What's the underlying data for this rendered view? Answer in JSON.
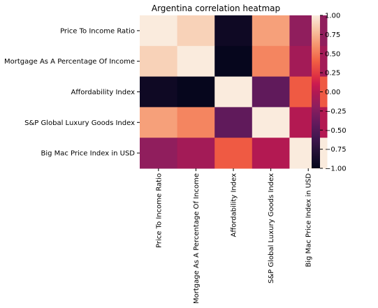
{
  "chart_data": {
    "type": "heatmap",
    "title": "Argentina correlation heatmap",
    "xlabel": "",
    "ylabel": "",
    "rows": [
      "Price To Income Ratio",
      "Mortgage As A Percentage Of Income",
      "Affordability Index",
      "S&P Global Luxury Goods Index",
      "Big Mac Price Index in USD"
    ],
    "columns": [
      "Price To Income Ratio",
      "Mortgage As A Percentage Of Income",
      "Affordability Index",
      "S&P Global Luxury Goods Index",
      "Big Mac Price Index in USD"
    ],
    "values": [
      [
        1.0,
        0.88,
        -0.92,
        0.66,
        -0.18
      ],
      [
        0.88,
        1.0,
        -0.98,
        0.55,
        -0.08
      ],
      [
        -0.92,
        -0.98,
        1.0,
        -0.43,
        0.38
      ],
      [
        0.66,
        0.55,
        -0.43,
        1.0,
        0.0
      ],
      [
        -0.18,
        -0.08,
        0.38,
        0.0,
        1.0
      ]
    ],
    "colorbar": {
      "min": -1.0,
      "max": 1.0,
      "ticks": [
        "1.00",
        "0.75",
        "0.50",
        "0.25",
        "0.00",
        "−0.25",
        "−0.50",
        "−0.75",
        "−1.00"
      ],
      "tick_values": [
        1.0,
        0.75,
        0.5,
        0.25,
        0.0,
        -0.25,
        -0.5,
        -0.75,
        -1.0
      ],
      "colormap": "rocket"
    }
  }
}
